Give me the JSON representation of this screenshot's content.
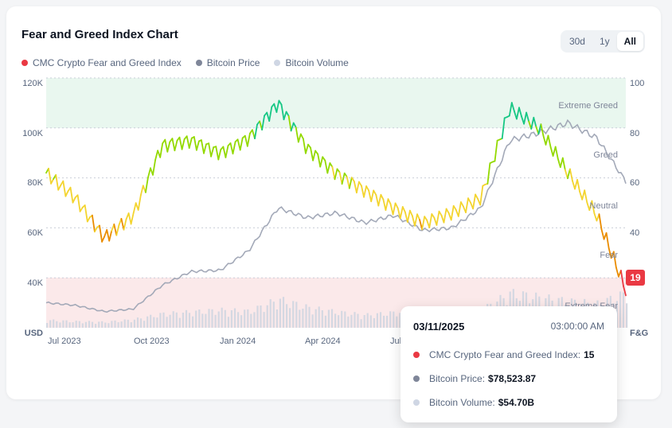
{
  "header": {
    "title": "Fear and Greed Index Chart",
    "ranges": [
      "30d",
      "1y",
      "All"
    ],
    "active_range": "All"
  },
  "legend": [
    {
      "label": "CMC Crypto Fear and Greed Index",
      "color": "#ea3943"
    },
    {
      "label": "Bitcoin Price",
      "color": "#7f8699"
    },
    {
      "label": "Bitcoin Volume",
      "color": "#cfd6e4"
    }
  ],
  "chart_data": {
    "type": "line",
    "left_axis": {
      "label": "USD",
      "ticks": [
        "40K",
        "60K",
        "80K",
        "100K",
        "120K"
      ],
      "range": [
        20000,
        120000
      ]
    },
    "right_axis": {
      "label": "F&G",
      "ticks": [
        "40",
        "60",
        "80",
        "100"
      ],
      "range": [
        0,
        100
      ]
    },
    "x_ticks": [
      "Jul 2023",
      "Oct 2023",
      "Jan 2024",
      "Apr 2024",
      "Jul"
    ],
    "zones": [
      {
        "label": "Extreme Greed",
        "from": 80,
        "to": 100
      },
      {
        "label": "Greed",
        "from": 60,
        "to": 80
      },
      {
        "label": "Neutral",
        "from": 40,
        "to": 60
      },
      {
        "label": "Fear",
        "from": 20,
        "to": 40
      },
      {
        "label": "Extreme Fear",
        "from": 0,
        "to": 20
      }
    ],
    "x_dates": [
      "2023-07",
      "2023-08",
      "2023-09",
      "2023-10",
      "2023-11",
      "2023-12",
      "2024-01",
      "2024-02",
      "2024-03",
      "2024-04",
      "2024-05",
      "2024-06",
      "2024-07",
      "2024-08",
      "2024-09",
      "2024-10",
      "2024-11",
      "2024-12",
      "2025-01",
      "2025-02",
      "2025-03"
    ],
    "series": [
      {
        "name": "CMC Crypto Fear and Greed Index",
        "values": [
          62,
          52,
          36,
          45,
          73,
          75,
          70,
          76,
          90,
          72,
          62,
          55,
          48,
          42,
          46,
          52,
          88,
          80,
          62,
          45,
          15
        ]
      },
      {
        "name": "Bitcoin Price",
        "values": [
          30000,
          29000,
          26500,
          27500,
          37000,
          42500,
          43000,
          51000,
          68000,
          64000,
          66000,
          62000,
          65000,
          59000,
          60000,
          68000,
          95000,
          98000,
          102000,
          96000,
          78523.87
        ]
      },
      {
        "name": "Bitcoin Volume",
        "values": [
          12,
          10,
          9,
          13,
          22,
          25,
          28,
          26,
          45,
          32,
          25,
          20,
          24,
          30,
          22,
          28,
          55,
          48,
          42,
          38,
          54.7
        ]
      }
    ],
    "current_value": "19"
  },
  "tooltip": {
    "date": "03/11/2025",
    "time": "03:00:00 AM",
    "rows": [
      {
        "label": "CMC Crypto Fear and Greed Index:",
        "value": "15",
        "color": "#ea3943"
      },
      {
        "label": "Bitcoin Price:",
        "value": "$78,523.87",
        "color": "#7f8699"
      },
      {
        "label": "Bitcoin Volume:",
        "value": "$54.70B",
        "color": "#cfd6e4"
      }
    ]
  }
}
